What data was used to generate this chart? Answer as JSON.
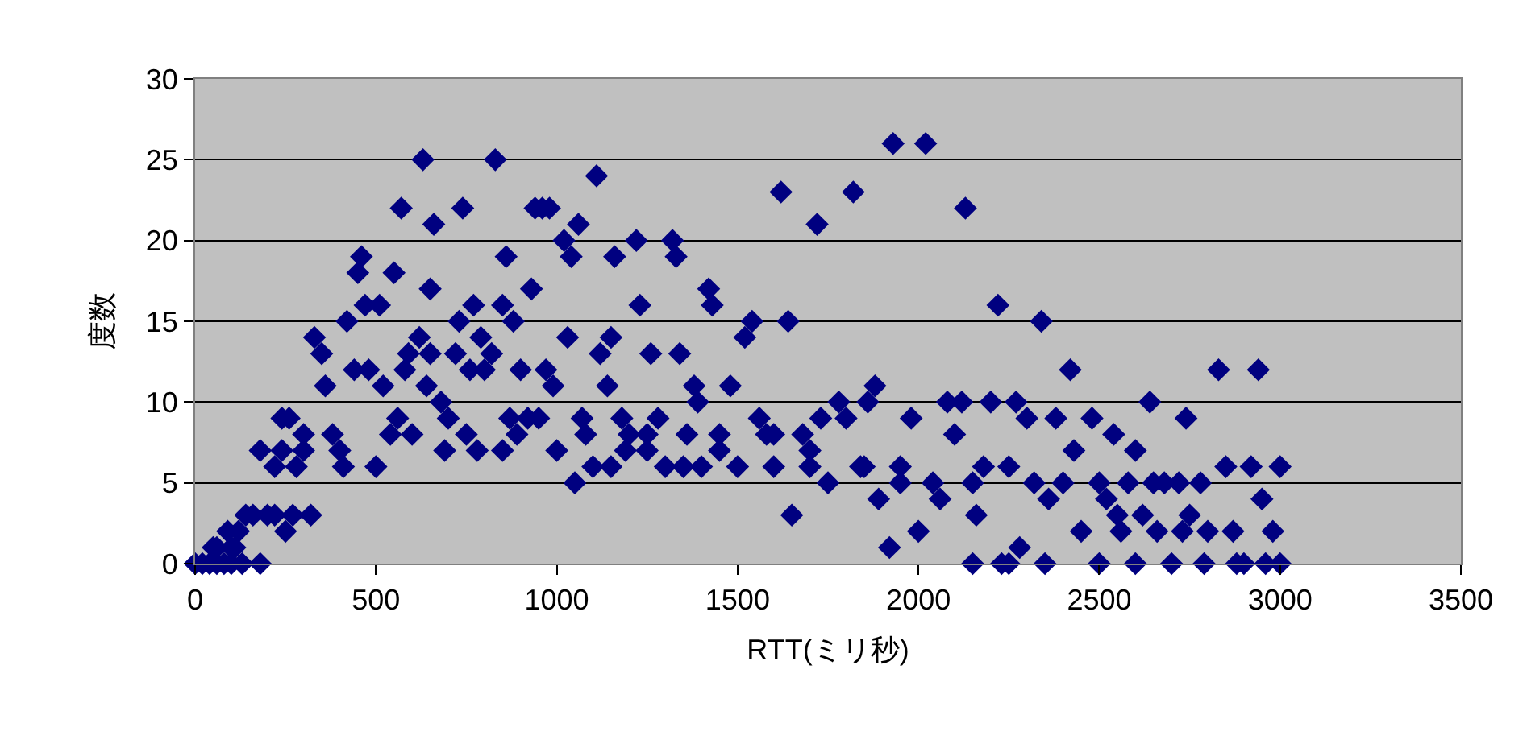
{
  "chart_data": {
    "type": "scatter",
    "xlabel": "RTT(ミリ秒)",
    "ylabel": "度数",
    "xlim": [
      0,
      3500
    ],
    "xticks": [
      0,
      500,
      1000,
      1500,
      2000,
      2500,
      3000,
      3500
    ],
    "ylim": [
      0,
      30
    ],
    "yticks": [
      0,
      5,
      10,
      15,
      20,
      25,
      30
    ],
    "grid": "y",
    "marker": "diamond",
    "legend": false,
    "series": [
      {
        "color": "#000080",
        "x": [
          0,
          20,
          40,
          60,
          80,
          100,
          120,
          140,
          160,
          180,
          200,
          220,
          60,
          100,
          130,
          90,
          50,
          110,
          180,
          240,
          260,
          280,
          300,
          320,
          270,
          240,
          220,
          250,
          300,
          330,
          350,
          360,
          380,
          400,
          410,
          420,
          440,
          450,
          460,
          470,
          480,
          500,
          510,
          520,
          540,
          550,
          560,
          570,
          580,
          590,
          600,
          620,
          630,
          640,
          650,
          660,
          680,
          690,
          700,
          720,
          730,
          740,
          760,
          770,
          780,
          790,
          800,
          820,
          830,
          850,
          860,
          870,
          880,
          890,
          900,
          920,
          930,
          940,
          960,
          970,
          980,
          990,
          1000,
          1020,
          1030,
          1040,
          1060,
          1070,
          1080,
          1100,
          1110,
          1120,
          1140,
          1150,
          1160,
          1180,
          1190,
          1200,
          1220,
          1230,
          1250,
          1260,
          1280,
          1300,
          1320,
          1330,
          1340,
          1360,
          1380,
          1390,
          1400,
          1420,
          1430,
          1450,
          1480,
          1500,
          1520,
          1540,
          1560,
          1580,
          1600,
          1620,
          1640,
          1650,
          1680,
          1700,
          1720,
          1730,
          1750,
          1780,
          1800,
          1820,
          1840,
          1860,
          1880,
          1890,
          1920,
          1930,
          1950,
          1980,
          2000,
          2020,
          2040,
          2060,
          2080,
          2100,
          2120,
          2130,
          2150,
          2160,
          2180,
          2200,
          2220,
          2230,
          2250,
          2270,
          2280,
          2300,
          2320,
          2340,
          2360,
          2380,
          2400,
          2420,
          2430,
          2450,
          2480,
          2500,
          2520,
          2540,
          2560,
          2580,
          2600,
          2620,
          2640,
          2660,
          2680,
          2700,
          2720,
          2740,
          2750,
          2780,
          2790,
          2800,
          2830,
          2850,
          2870,
          2900,
          2920,
          2940,
          2950,
          2960,
          2980,
          3000,
          3000,
          2350,
          2150,
          1950,
          1850,
          1700,
          1600,
          1450,
          1350,
          1250,
          1150,
          1050,
          950,
          850,
          750,
          650,
          2500,
          2650,
          2550,
          2250,
          2600,
          2880,
          2730
        ],
        "values": [
          0,
          0,
          0,
          1,
          0,
          1,
          2,
          3,
          3,
          0,
          3,
          3,
          0,
          0,
          0,
          2,
          1,
          1,
          7,
          9,
          9,
          6,
          7,
          3,
          3,
          7,
          6,
          2,
          8,
          14,
          13,
          11,
          8,
          7,
          6,
          15,
          12,
          18,
          19,
          16,
          12,
          6,
          16,
          11,
          8,
          18,
          9,
          22,
          12,
          13,
          8,
          14,
          25,
          11,
          17,
          21,
          10,
          7,
          9,
          13,
          15,
          22,
          12,
          16,
          7,
          14,
          12,
          13,
          25,
          16,
          19,
          9,
          15,
          8,
          12,
          9,
          17,
          22,
          22,
          12,
          22,
          11,
          7,
          20,
          14,
          19,
          21,
          9,
          8,
          6,
          24,
          13,
          11,
          14,
          19,
          9,
          7,
          8,
          20,
          16,
          8,
          13,
          9,
          6,
          20,
          19,
          13,
          8,
          11,
          10,
          6,
          17,
          16,
          7,
          11,
          6,
          14,
          15,
          9,
          8,
          6,
          23,
          15,
          3,
          8,
          7,
          21,
          9,
          5,
          10,
          9,
          23,
          6,
          10,
          11,
          4,
          1,
          26,
          6,
          9,
          2,
          26,
          5,
          4,
          10,
          8,
          10,
          22,
          5,
          3,
          6,
          10,
          16,
          0,
          6,
          10,
          1,
          9,
          5,
          15,
          4,
          9,
          5,
          12,
          7,
          2,
          9,
          0,
          4,
          8,
          2,
          5,
          7,
          3,
          10,
          2,
          5,
          0,
          5,
          9,
          3,
          5,
          0,
          2,
          12,
          6,
          2,
          0,
          6,
          12,
          4,
          0,
          2,
          6,
          0,
          0,
          0,
          5,
          6,
          6,
          8,
          8,
          6,
          7,
          6,
          5,
          9,
          7,
          8,
          13,
          5,
          5,
          3,
          0,
          0,
          0,
          2
        ]
      }
    ]
  }
}
